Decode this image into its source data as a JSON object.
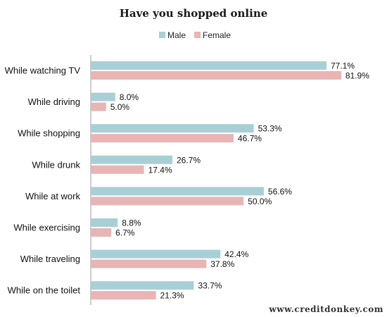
{
  "chart_data": {
    "type": "bar",
    "orientation": "horizontal",
    "title": "Have you shopped online",
    "categories": [
      "While watching  TV",
      "While driving",
      "While shopping",
      "While drunk",
      "While at work",
      "While exercising",
      "While traveling",
      "While on the toilet"
    ],
    "series": [
      {
        "name": "Male",
        "values": [
          77.1,
          8.0,
          53.3,
          26.7,
          56.6,
          8.8,
          42.4,
          33.7
        ],
        "labels": [
          "77.1%",
          "8.0%",
          "53.3%",
          "26.7%",
          "56.6%",
          "8.8%",
          "42.4%",
          "33.7%"
        ],
        "color": "#a8cfd6"
      },
      {
        "name": "Female",
        "values": [
          81.9,
          5.0,
          46.7,
          17.4,
          50.0,
          6.7,
          37.8,
          21.3
        ],
        "labels": [
          "81.9%",
          "5.0%",
          "46.7%",
          "17.4%",
          "50.0%",
          "6.7%",
          "37.8%",
          "21.3%"
        ],
        "color": "#e8b4b4"
      }
    ],
    "xlim": [
      0,
      100
    ],
    "legend_position": "top-center",
    "grid": false
  },
  "source": "www.creditdonkey.com",
  "colors": {
    "axis": "#999999"
  }
}
